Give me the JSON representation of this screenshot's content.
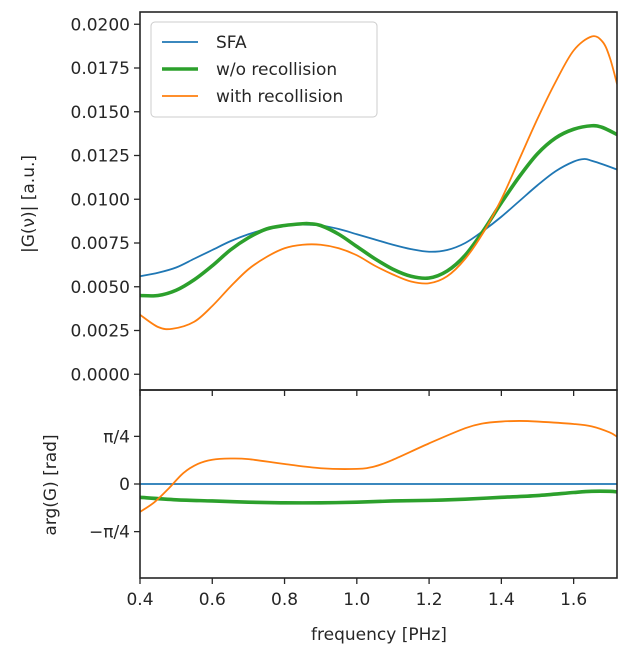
{
  "chart_data": [
    {
      "panel": "top",
      "type": "line",
      "ylabel": "|G(ν)| [a.u.]",
      "xlabel": "",
      "xlim": [
        0.4,
        1.72
      ],
      "ylim": [
        -0.0009,
        0.0207
      ],
      "yticks": [
        0.0,
        0.0025,
        0.005,
        0.0075,
        0.01,
        0.0125,
        0.015,
        0.0175,
        0.02
      ],
      "ytick_labels": [
        "0.0000",
        "0.0025",
        "0.0050",
        "0.0075",
        "0.0100",
        "0.0125",
        "0.0150",
        "0.0175",
        "0.0200"
      ],
      "grid": false,
      "legend": "top-left",
      "series": [
        {
          "name": "SFA",
          "color": "#1f77b4",
          "x": [
            0.4,
            0.45,
            0.5,
            0.55,
            0.6,
            0.65,
            0.7,
            0.75,
            0.8,
            0.85,
            0.9,
            0.95,
            1.0,
            1.05,
            1.1,
            1.15,
            1.2,
            1.25,
            1.3,
            1.35,
            1.4,
            1.45,
            1.5,
            1.55,
            1.6,
            1.63,
            1.65,
            1.68,
            1.72
          ],
          "y": [
            0.0056,
            0.0058,
            0.0061,
            0.0066,
            0.0071,
            0.0076,
            0.008,
            0.0083,
            0.0085,
            0.00855,
            0.0085,
            0.0083,
            0.008,
            0.0077,
            0.0074,
            0.00715,
            0.007,
            0.0071,
            0.0075,
            0.0082,
            0.009,
            0.0099,
            0.0108,
            0.0116,
            0.01215,
            0.0123,
            0.0122,
            0.012,
            0.0117
          ]
        },
        {
          "name": "w/o recollision",
          "color": "#2ca02c",
          "x": [
            0.4,
            0.45,
            0.5,
            0.55,
            0.6,
            0.65,
            0.7,
            0.75,
            0.8,
            0.85,
            0.87,
            0.9,
            0.95,
            1.0,
            1.05,
            1.1,
            1.15,
            1.2,
            1.25,
            1.3,
            1.35,
            1.4,
            1.45,
            1.5,
            1.55,
            1.6,
            1.65,
            1.68,
            1.72
          ],
          "y": [
            0.0045,
            0.0045,
            0.0048,
            0.0054,
            0.0062,
            0.0071,
            0.0078,
            0.0083,
            0.0085,
            0.0086,
            0.0086,
            0.0085,
            0.008,
            0.0073,
            0.0066,
            0.006,
            0.0056,
            0.0055,
            0.0059,
            0.0068,
            0.0082,
            0.0098,
            0.0113,
            0.0126,
            0.0135,
            0.014,
            0.0142,
            0.0141,
            0.0137
          ]
        },
        {
          "name": "with recollision",
          "color": "#ff7f0e",
          "x": [
            0.4,
            0.45,
            0.49,
            0.55,
            0.6,
            0.65,
            0.7,
            0.75,
            0.8,
            0.85,
            0.9,
            0.95,
            1.0,
            1.05,
            1.1,
            1.15,
            1.2,
            1.25,
            1.3,
            1.35,
            1.4,
            1.45,
            1.5,
            1.55,
            1.6,
            1.65,
            1.68,
            1.7,
            1.72
          ],
          "y": [
            0.0034,
            0.0027,
            0.0026,
            0.003,
            0.0039,
            0.005,
            0.006,
            0.0067,
            0.0072,
            0.0074,
            0.0074,
            0.0072,
            0.0068,
            0.0062,
            0.0057,
            0.0053,
            0.0052,
            0.0056,
            0.0066,
            0.0081,
            0.01,
            0.0123,
            0.0146,
            0.0167,
            0.0185,
            0.0193,
            0.019,
            0.0181,
            0.0166
          ]
        }
      ]
    },
    {
      "panel": "bottom",
      "type": "line",
      "ylabel": "arg(G) [rad]",
      "xlabel": "frequency [PHz]",
      "xlim": [
        0.4,
        1.72
      ],
      "ylim": [
        -1.55,
        1.55
      ],
      "yticks": [
        -0.7854,
        0.0,
        0.7854
      ],
      "ytick_labels": [
        "−π/4",
        "0",
        "π/4"
      ],
      "xticks": [
        0.4,
        0.6,
        0.8,
        1.0,
        1.2,
        1.4,
        1.6
      ],
      "xtick_labels": [
        "0.4",
        "0.6",
        "0.8",
        "1.0",
        "1.2",
        "1.4",
        "1.6"
      ],
      "grid": false,
      "series": [
        {
          "name": "SFA",
          "color": "#1f77b4",
          "x": [
            0.4,
            1.72
          ],
          "y": [
            0.0,
            0.0
          ]
        },
        {
          "name": "w/o recollision",
          "color": "#2ca02c",
          "x": [
            0.4,
            0.5,
            0.6,
            0.7,
            0.8,
            0.9,
            1.0,
            1.1,
            1.2,
            1.3,
            1.4,
            1.5,
            1.6,
            1.65,
            1.7,
            1.72
          ],
          "y": [
            -0.22,
            -0.26,
            -0.28,
            -0.3,
            -0.31,
            -0.31,
            -0.3,
            -0.28,
            -0.27,
            -0.25,
            -0.22,
            -0.19,
            -0.14,
            -0.12,
            -0.12,
            -0.13
          ]
        },
        {
          "name": "with recollision",
          "color": "#ff7f0e",
          "x": [
            0.4,
            0.44,
            0.48,
            0.52,
            0.56,
            0.6,
            0.65,
            0.7,
            0.8,
            0.9,
            1.0,
            1.05,
            1.1,
            1.2,
            1.3,
            1.35,
            1.4,
            1.45,
            1.5,
            1.6,
            1.65,
            1.7,
            1.72
          ],
          "y": [
            -0.46,
            -0.3,
            -0.07,
            0.18,
            0.33,
            0.4,
            0.42,
            0.41,
            0.33,
            0.26,
            0.25,
            0.29,
            0.4,
            0.67,
            0.92,
            1.0,
            1.03,
            1.04,
            1.03,
            0.99,
            0.95,
            0.85,
            0.78
          ]
        }
      ]
    }
  ]
}
